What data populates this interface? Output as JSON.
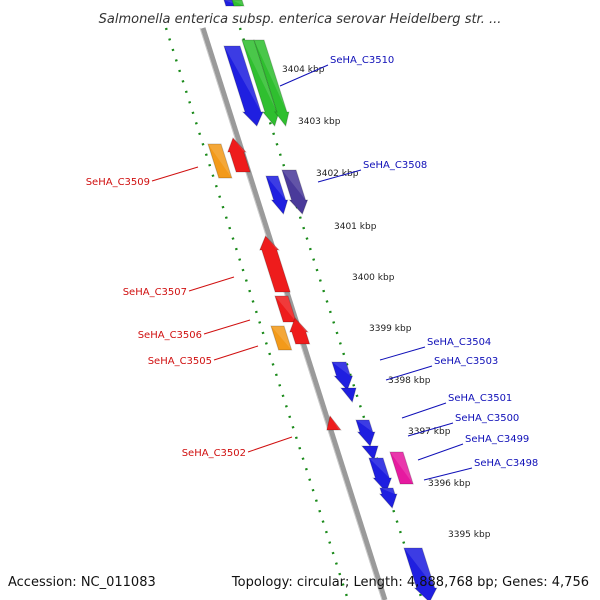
{
  "header": {
    "title": "Salmonella enterica subsp. enterica serovar Heidelberg str. ..."
  },
  "footer": {
    "accession": "Accession: NC_011083",
    "summary": "Topology: circular; Length: 4,888,768 bp; Genes: 4,756"
  },
  "colors": {
    "blue": "#1f1fe0",
    "green": "#2fbf2f",
    "red": "#ee1c1c",
    "orange": "#f39a1a",
    "purple": "#4a3a9a",
    "pink": "#e61aa0",
    "backbone": "#9a9a9a",
    "dots": "#1a8a1a",
    "label_blue": "#1010b8",
    "label_red": "#d01010"
  },
  "kbp_ticks": [
    "3404 kbp",
    "3403 kbp",
    "3402 kbp",
    "3401 kbp",
    "3400 kbp",
    "3399 kbp",
    "3398 kbp",
    "3397 kbp",
    "3396 kbp",
    "3395 kbp"
  ],
  "genes": [
    {
      "label": "SeHA_C3510",
      "color": "blue"
    },
    {
      "label": "SeHA_C3508",
      "color": "blue"
    },
    {
      "label": "SeHA_C3504",
      "color": "blue"
    },
    {
      "label": "SeHA_C3503",
      "color": "blue"
    },
    {
      "label": "SeHA_C3501",
      "color": "blue"
    },
    {
      "label": "SeHA_C3500",
      "color": "blue"
    },
    {
      "label": "SeHA_C3499",
      "color": "blue"
    },
    {
      "label": "SeHA_C3498",
      "color": "blue"
    },
    {
      "label": "SeHA_C3509",
      "color": "red"
    },
    {
      "label": "SeHA_C3507",
      "color": "red"
    },
    {
      "label": "SeHA_C3506",
      "color": "red"
    },
    {
      "label": "SeHA_C3505",
      "color": "red"
    },
    {
      "label": "SeHA_C3502",
      "color": "red"
    }
  ]
}
